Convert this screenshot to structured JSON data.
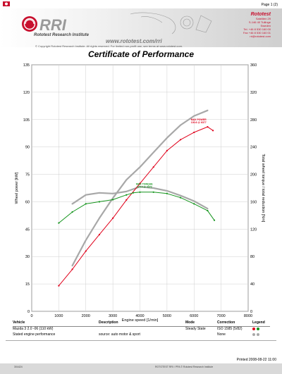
{
  "header": {
    "page_label": "Page 1 (2)",
    "brand_text": "RRI",
    "brand_subtitle": "Rototest Research Institute",
    "website": "www.rototest.com/rri",
    "copyright": "© Copyright Rototest Research Institute. All rights reserved. For limited non-profit use, see terms at www.rototest.com.",
    "company_lines": [
      "Rototest",
      "Sateliten 29",
      "S-146 40 Tullinge",
      "Sweden",
      "Tel. +46 8 530 160 00",
      "Fax +46 8 530 160 01",
      "rri@rototest.com"
    ]
  },
  "title": "Certificate of Performance",
  "chart_data": {
    "type": "line",
    "xlabel": "Engine speed [1/min]",
    "ylabel_left": "Wheel power [kW]",
    "ylabel_right": "Total wheel torque / total reduction [Nm]",
    "xlim": [
      0,
      8000
    ],
    "ylim_left": [
      0,
      135
    ],
    "ylim_right": [
      0,
      360
    ],
    "x_ticks": [
      0,
      1000,
      2000,
      3000,
      4000,
      5000,
      6000,
      7000,
      8000
    ],
    "y_left_ticks": [
      0,
      15,
      30,
      45,
      60,
      75,
      90,
      105,
      120,
      135
    ],
    "y_right_ticks": [
      0,
      40,
      80,
      120,
      160,
      200,
      240,
      280,
      320,
      360
    ],
    "grid": true,
    "series": [
      {
        "name": "Mazda 3 2.0 -06 (110 kW) power",
        "axis": "left",
        "color": "#e0001a",
        "markers": true,
        "x": [
          1000,
          1500,
          2000,
          2500,
          3000,
          3500,
          4000,
          4500,
          5000,
          5500,
          6000,
          6500,
          6700
        ],
        "y": [
          14,
          23,
          33,
          42,
          51,
          61,
          70,
          79,
          88,
          94,
          98,
          101,
          99
        ]
      },
      {
        "name": "Mazda 3 2.0 -06 (110 kW) torque",
        "axis": "right",
        "color": "#14941c",
        "markers": true,
        "x": [
          1000,
          1500,
          2000,
          2500,
          3000,
          3500,
          3750,
          4000,
          4500,
          5000,
          5500,
          6000,
          6500,
          6750
        ],
        "y": [
          129,
          145,
          157,
          160,
          163,
          170,
          173,
          174,
          174,
          172,
          166,
          157,
          147,
          133
        ]
      },
      {
        "name": "Stated engine performance power",
        "axis": "left",
        "color": "#a8a8a8",
        "markers": false,
        "x": [
          1500,
          2000,
          2500,
          3000,
          3500,
          4000,
          4500,
          5000,
          5500,
          6000,
          6500
        ],
        "y": [
          25,
          39,
          51,
          62,
          72,
          79,
          87,
          95,
          102,
          107,
          110
        ]
      },
      {
        "name": "Stated engine performance torque",
        "axis": "right",
        "color": "#a8a8a8",
        "markers": false,
        "x": [
          1500,
          2000,
          2500,
          3000,
          3500,
          4000,
          4500,
          5000,
          5500,
          6000,
          6500
        ],
        "y": [
          157,
          170,
          173,
          172,
          175,
          182,
          180,
          176,
          169,
          161,
          150
        ]
      }
    ],
    "annotations": [
      {
        "text": "MAX POWER",
        "text2": "100.6 @ 6377",
        "x": 6377,
        "y": 100.6,
        "axis": "left",
        "color": "#e0001a"
      },
      {
        "text": "MAX TORQUE",
        "text2": "174.4 @ 4372",
        "x": 4372,
        "y": 174.4,
        "axis": "right",
        "color": "#14941c"
      }
    ]
  },
  "table": {
    "headers": {
      "vehicle": "Vehicle",
      "description": "Description",
      "mode": "Mode",
      "correction": "Correction",
      "legend": "Legend"
    },
    "rows": [
      {
        "vehicle": "Mazda 3 2.0 -06 (110 kW)",
        "description": "",
        "mode": "Steady State",
        "correction": "ISO 1585 (5/82)",
        "legend_colors": [
          "#e0001a",
          "#14941c"
        ]
      },
      {
        "vehicle": "Stated engine performance",
        "description": "source: auto motor & sport",
        "mode": "",
        "correction": "None",
        "legend_colors": [
          "#a8a8a8",
          "#a8a8a8"
        ]
      }
    ]
  },
  "footer": {
    "printed": "Printed 2008-08-22 11:00",
    "doc_id": "304424",
    "bottom_text": "ROTOTEST RRI / PPA © Rototest Research Institute"
  }
}
